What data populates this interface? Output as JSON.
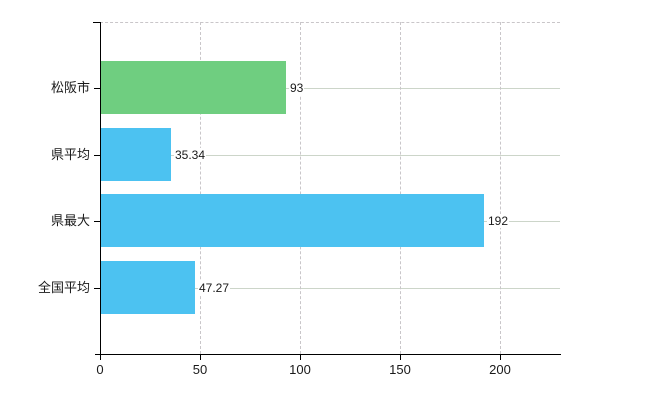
{
  "chart_data": {
    "type": "bar",
    "orientation": "horizontal",
    "title": "",
    "xlabel": "",
    "ylabel": "",
    "categories": [
      "松阪市",
      "県平均",
      "県最大",
      "全国平均"
    ],
    "values": [
      93,
      35.34,
      192,
      47.27
    ],
    "value_labels": [
      "93",
      "35.34",
      "192",
      "47.27"
    ],
    "bar_colors": [
      "#6fce80",
      "#4cc2f1",
      "#4cc2f1",
      "#4cc2f1"
    ],
    "xlim": [
      0,
      230
    ],
    "x_ticks": [
      0,
      50,
      100,
      150,
      200
    ],
    "x_tick_labels": [
      "0",
      "50",
      "100",
      "150",
      "200"
    ],
    "grid": true,
    "legend": false
  },
  "colors": {
    "background": "#ffffff",
    "green_bar": "#6fce80",
    "blue_bar": "#4cc2f1",
    "h_gridline": "#ccd5c9",
    "v_gridline": "#c9c6c9",
    "plot_top_border": "#c9c6c9",
    "axis": "#000000",
    "text": "#1a1a1a"
  }
}
